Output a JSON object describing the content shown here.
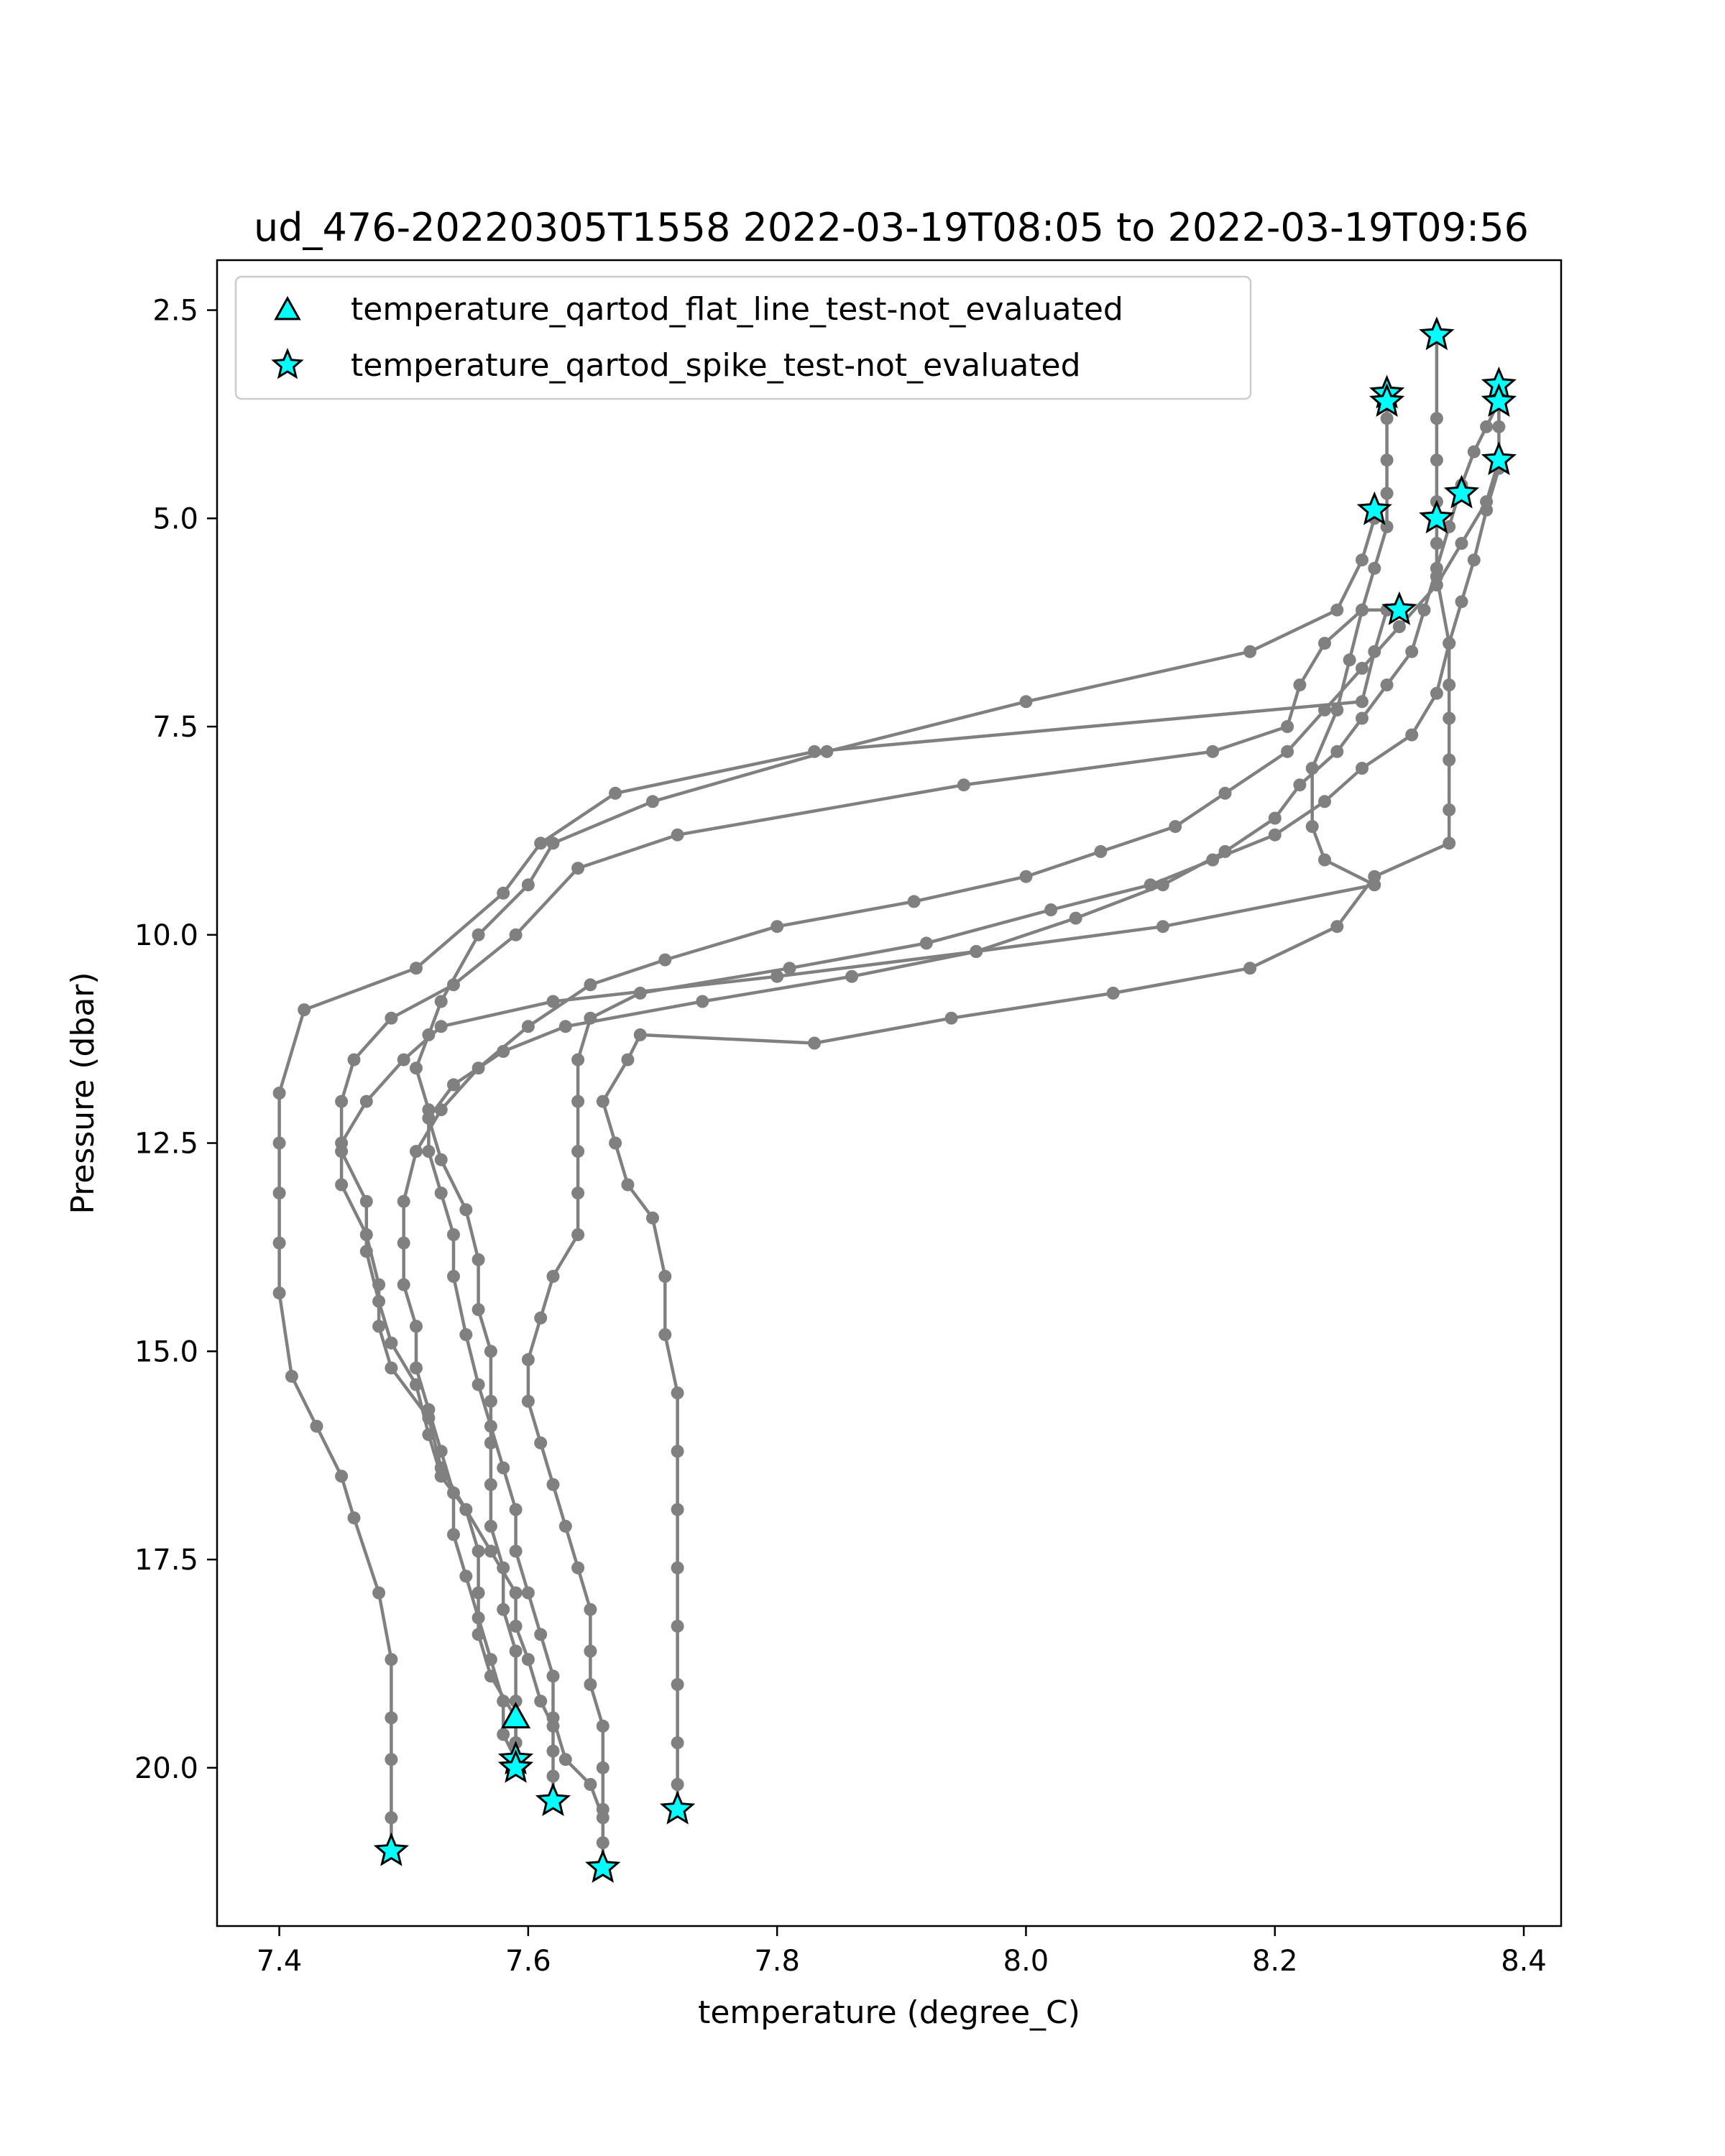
{
  "chart_data": {
    "type": "line",
    "title": "ud_476-20220305T1558 2022-03-19T08:05 to 2022-03-19T09:56",
    "xlabel": "temperature (degree_C)",
    "ylabel": "Pressure (dbar)",
    "xlim": [
      7.35,
      8.43
    ],
    "ylim": [
      21.9,
      1.9
    ],
    "y_inverted": true,
    "x_ticks": [
      7.4,
      7.6,
      7.8,
      8.0,
      8.2,
      8.4
    ],
    "x_tick_labels": [
      "7.4",
      "7.6",
      "7.8",
      "8.0",
      "8.2",
      "8.4"
    ],
    "y_ticks": [
      2.5,
      5.0,
      7.5,
      10.0,
      12.5,
      15.0,
      17.5,
      20.0
    ],
    "y_tick_labels": [
      "2.5",
      "5.0",
      "7.5",
      "10.0",
      "12.5",
      "15.0",
      "17.5",
      "20.0"
    ],
    "grid": false,
    "legend_position": "upper-left",
    "line_color": "#808080",
    "marker_color": "#00ffff",
    "series": [
      {
        "profile": 1,
        "direction": "down",
        "points": [
          [
            8.33,
            2.8
          ],
          [
            8.33,
            3.8
          ],
          [
            8.33,
            4.3
          ],
          [
            8.33,
            4.8
          ],
          [
            8.33,
            5.3
          ],
          [
            8.33,
            5.7
          ],
          [
            8.34,
            6.5
          ],
          [
            8.34,
            7.0
          ],
          [
            8.34,
            7.4
          ],
          [
            8.34,
            7.9
          ],
          [
            8.34,
            8.5
          ],
          [
            8.34,
            8.9
          ],
          [
            8.28,
            9.3
          ],
          [
            8.25,
            9.9
          ],
          [
            8.18,
            10.4
          ],
          [
            8.07,
            10.7
          ],
          [
            7.94,
            11.0
          ],
          [
            7.83,
            11.3
          ],
          [
            7.69,
            11.2
          ],
          [
            7.68,
            11.5
          ],
          [
            7.66,
            12.0
          ],
          [
            7.67,
            12.5
          ],
          [
            7.68,
            13.0
          ],
          [
            7.7,
            13.4
          ],
          [
            7.71,
            14.1
          ],
          [
            7.71,
            14.8
          ],
          [
            7.72,
            15.5
          ],
          [
            7.72,
            16.2
          ],
          [
            7.72,
            16.9
          ],
          [
            7.72,
            17.6
          ],
          [
            7.72,
            18.3
          ],
          [
            7.72,
            19.0
          ],
          [
            7.72,
            19.7
          ],
          [
            7.72,
            20.2
          ],
          [
            7.72,
            20.5
          ]
        ]
      },
      {
        "profile": 2,
        "direction": "up",
        "points": [
          [
            7.49,
            21.0
          ],
          [
            7.49,
            20.6
          ],
          [
            7.49,
            19.9
          ],
          [
            7.49,
            19.4
          ],
          [
            7.49,
            18.7
          ],
          [
            7.48,
            17.9
          ],
          [
            7.46,
            17.0
          ],
          [
            7.45,
            16.5
          ],
          [
            7.43,
            15.9
          ],
          [
            7.41,
            15.3
          ],
          [
            7.4,
            14.3
          ],
          [
            7.4,
            13.7
          ],
          [
            7.4,
            13.1
          ],
          [
            7.4,
            12.5
          ],
          [
            7.4,
            11.9
          ],
          [
            7.42,
            10.9
          ],
          [
            7.51,
            10.4
          ],
          [
            7.58,
            9.5
          ],
          [
            7.61,
            8.9
          ],
          [
            7.67,
            8.3
          ],
          [
            7.83,
            7.8
          ],
          [
            8.27,
            7.2
          ],
          [
            8.28,
            6.6
          ],
          [
            8.29,
            6.1
          ]
        ]
      },
      {
        "profile": 3,
        "direction": "down",
        "points": [
          [
            8.29,
            3.5
          ],
          [
            8.29,
            3.8
          ],
          [
            8.29,
            4.3
          ],
          [
            8.29,
            4.7
          ],
          [
            8.29,
            5.1
          ],
          [
            8.28,
            5.6
          ],
          [
            8.27,
            6.1
          ],
          [
            8.26,
            6.7
          ],
          [
            8.25,
            7.3
          ],
          [
            8.23,
            8.0
          ],
          [
            8.23,
            8.7
          ],
          [
            8.24,
            9.1
          ],
          [
            8.28,
            9.4
          ],
          [
            8.11,
            9.9
          ],
          [
            7.96,
            10.2
          ],
          [
            7.8,
            10.5
          ],
          [
            7.62,
            10.8
          ],
          [
            7.53,
            11.1
          ],
          [
            7.5,
            11.5
          ],
          [
            7.47,
            12.0
          ],
          [
            7.45,
            12.5
          ],
          [
            7.45,
            13.0
          ],
          [
            7.47,
            13.6
          ],
          [
            7.48,
            14.2
          ],
          [
            7.48,
            14.7
          ],
          [
            7.49,
            15.2
          ],
          [
            7.52,
            15.8
          ],
          [
            7.53,
            16.4
          ],
          [
            7.55,
            16.9
          ],
          [
            7.57,
            17.4
          ],
          [
            7.59,
            17.9
          ],
          [
            7.59,
            18.3
          ],
          [
            7.6,
            18.7
          ],
          [
            7.61,
            19.2
          ],
          [
            7.62,
            19.5
          ],
          [
            7.62,
            19.8
          ],
          [
            7.62,
            20.1
          ],
          [
            7.62,
            20.4
          ]
        ]
      },
      {
        "profile": 4,
        "direction": "up",
        "points": [
          [
            7.66,
            21.2
          ],
          [
            7.66,
            20.9
          ],
          [
            7.66,
            20.6
          ],
          [
            7.65,
            20.2
          ],
          [
            7.63,
            19.9
          ],
          [
            7.62,
            19.4
          ],
          [
            7.62,
            18.9
          ],
          [
            7.61,
            18.4
          ],
          [
            7.6,
            17.9
          ],
          [
            7.59,
            17.4
          ],
          [
            7.59,
            16.9
          ],
          [
            7.58,
            16.4
          ],
          [
            7.57,
            15.9
          ],
          [
            7.56,
            15.4
          ],
          [
            7.55,
            14.8
          ],
          [
            7.54,
            14.1
          ],
          [
            7.54,
            13.6
          ],
          [
            7.53,
            13.1
          ],
          [
            7.52,
            12.6
          ],
          [
            7.52,
            12.1
          ],
          [
            7.51,
            11.6
          ],
          [
            7.52,
            11.2
          ],
          [
            7.53,
            10.8
          ],
          [
            7.56,
            10.0
          ],
          [
            7.6,
            9.4
          ],
          [
            7.62,
            8.9
          ],
          [
            7.7,
            8.4
          ],
          [
            7.84,
            7.8
          ],
          [
            8.0,
            7.2
          ],
          [
            8.18,
            6.6
          ],
          [
            8.25,
            6.1
          ],
          [
            8.27,
            5.5
          ],
          [
            8.28,
            5.0
          ]
        ]
      },
      {
        "profile": 5,
        "direction": "down",
        "points": [
          [
            8.38,
            3.6
          ],
          [
            8.37,
            3.9
          ],
          [
            8.36,
            4.2
          ],
          [
            8.35,
            4.6
          ],
          [
            8.34,
            5.1
          ],
          [
            8.33,
            5.6
          ],
          [
            8.32,
            6.1
          ],
          [
            8.31,
            6.6
          ],
          [
            8.29,
            7.0
          ],
          [
            8.27,
            7.4
          ],
          [
            8.25,
            7.8
          ],
          [
            8.22,
            8.2
          ],
          [
            8.2,
            8.6
          ],
          [
            8.16,
            9.0
          ],
          [
            8.11,
            9.4
          ],
          [
            8.04,
            9.8
          ],
          [
            7.96,
            10.2
          ],
          [
            7.86,
            10.5
          ],
          [
            7.74,
            10.8
          ],
          [
            7.63,
            11.1
          ],
          [
            7.58,
            11.4
          ],
          [
            7.54,
            11.8
          ],
          [
            7.52,
            12.2
          ],
          [
            7.53,
            12.7
          ],
          [
            7.55,
            13.3
          ],
          [
            7.56,
            13.9
          ],
          [
            7.56,
            14.5
          ],
          [
            7.57,
            15.0
          ],
          [
            7.57,
            15.6
          ],
          [
            7.57,
            16.1
          ],
          [
            7.57,
            16.6
          ],
          [
            7.57,
            17.1
          ],
          [
            7.58,
            17.6
          ],
          [
            7.58,
            18.1
          ],
          [
            7.59,
            18.6
          ],
          [
            7.59,
            19.2
          ],
          [
            7.59,
            19.7
          ],
          [
            7.59,
            20.0
          ]
        ]
      },
      {
        "profile": 6,
        "direction": "up",
        "points": [
          [
            7.59,
            19.9
          ],
          [
            7.59,
            19.7
          ],
          [
            7.59,
            19.4
          ],
          [
            7.57,
            18.9
          ],
          [
            7.56,
            18.4
          ],
          [
            7.56,
            17.9
          ],
          [
            7.56,
            17.4
          ],
          [
            7.55,
            16.9
          ],
          [
            7.53,
            16.5
          ],
          [
            7.52,
            16.0
          ],
          [
            7.51,
            15.4
          ],
          [
            7.49,
            14.9
          ],
          [
            7.48,
            14.4
          ],
          [
            7.47,
            13.8
          ],
          [
            7.47,
            13.2
          ],
          [
            7.45,
            12.6
          ],
          [
            7.45,
            12.0
          ],
          [
            7.46,
            11.5
          ],
          [
            7.49,
            11.0
          ],
          [
            7.54,
            10.6
          ],
          [
            7.59,
            10.0
          ],
          [
            7.64,
            9.2
          ],
          [
            7.72,
            8.8
          ],
          [
            7.95,
            8.2
          ],
          [
            8.15,
            7.8
          ],
          [
            8.21,
            7.5
          ],
          [
            8.22,
            7.0
          ],
          [
            8.24,
            6.5
          ],
          [
            8.27,
            6.1
          ],
          [
            8.3,
            6.1
          ]
        ]
      },
      {
        "profile": 7,
        "direction": "down",
        "points": [
          [
            8.38,
            3.4
          ],
          [
            8.38,
            3.9
          ],
          [
            8.38,
            4.4
          ],
          [
            8.37,
            4.9
          ],
          [
            8.36,
            5.5
          ],
          [
            8.35,
            6.0
          ],
          [
            8.34,
            6.5
          ],
          [
            8.33,
            7.1
          ],
          [
            8.31,
            7.6
          ],
          [
            8.27,
            8.0
          ],
          [
            8.24,
            8.4
          ],
          [
            8.2,
            8.8
          ],
          [
            8.15,
            9.1
          ],
          [
            8.1,
            9.4
          ],
          [
            8.02,
            9.7
          ],
          [
            7.92,
            10.1
          ],
          [
            7.81,
            10.4
          ],
          [
            7.69,
            10.7
          ],
          [
            7.65,
            11.0
          ],
          [
            7.64,
            11.5
          ],
          [
            7.64,
            12.0
          ],
          [
            7.64,
            12.6
          ],
          [
            7.64,
            13.1
          ],
          [
            7.64,
            13.6
          ],
          [
            7.62,
            14.1
          ],
          [
            7.61,
            14.6
          ],
          [
            7.6,
            15.1
          ],
          [
            7.6,
            15.6
          ],
          [
            7.61,
            16.1
          ],
          [
            7.62,
            16.6
          ],
          [
            7.63,
            17.1
          ],
          [
            7.64,
            17.6
          ],
          [
            7.65,
            18.1
          ],
          [
            7.65,
            18.6
          ],
          [
            7.65,
            19.0
          ],
          [
            7.66,
            19.5
          ],
          [
            7.66,
            20.0
          ],
          [
            7.66,
            20.5
          ],
          [
            7.66,
            21.2
          ]
        ]
      },
      {
        "profile": 8,
        "direction": "up",
        "points": [
          [
            8.38,
            4.3
          ],
          [
            8.37,
            4.8
          ],
          [
            8.35,
            5.3
          ],
          [
            8.33,
            5.8
          ],
          [
            8.3,
            6.3
          ],
          [
            8.27,
            6.8
          ],
          [
            8.24,
            7.3
          ],
          [
            8.21,
            7.8
          ],
          [
            8.16,
            8.3
          ],
          [
            8.12,
            8.7
          ],
          [
            8.06,
            9.0
          ],
          [
            8.0,
            9.3
          ],
          [
            7.91,
            9.6
          ],
          [
            7.8,
            9.9
          ],
          [
            7.71,
            10.3
          ],
          [
            7.65,
            10.6
          ],
          [
            7.6,
            11.1
          ],
          [
            7.56,
            11.6
          ],
          [
            7.53,
            12.1
          ],
          [
            7.51,
            12.6
          ],
          [
            7.5,
            13.2
          ],
          [
            7.5,
            13.7
          ],
          [
            7.5,
            14.2
          ],
          [
            7.51,
            14.7
          ],
          [
            7.51,
            15.2
          ],
          [
            7.52,
            15.7
          ],
          [
            7.53,
            16.2
          ],
          [
            7.54,
            16.7
          ],
          [
            7.54,
            17.2
          ],
          [
            7.55,
            17.7
          ],
          [
            7.56,
            18.2
          ],
          [
            7.57,
            18.7
          ],
          [
            7.58,
            19.2
          ],
          [
            7.58,
            19.6
          ],
          [
            7.59,
            19.9
          ]
        ]
      }
    ],
    "marker_series": [
      {
        "name": "temperature_qartod_flat_line_test-not_evaluated",
        "marker": "triangle",
        "points": [
          [
            7.59,
            19.4
          ]
        ]
      },
      {
        "name": "temperature_qartod_spike_test-not_evaluated",
        "marker": "star",
        "points": [
          [
            8.33,
            2.8
          ],
          [
            8.29,
            3.5
          ],
          [
            8.29,
            3.6
          ],
          [
            8.38,
            3.4
          ],
          [
            8.38,
            3.6
          ],
          [
            8.38,
            4.3
          ],
          [
            8.35,
            4.7
          ],
          [
            8.28,
            4.9
          ],
          [
            8.33,
            5.0
          ],
          [
            8.3,
            6.1
          ],
          [
            7.59,
            19.9
          ],
          [
            7.59,
            20.0
          ],
          [
            7.62,
            20.4
          ],
          [
            7.72,
            20.5
          ],
          [
            7.49,
            21.0
          ],
          [
            7.66,
            21.2
          ]
        ]
      }
    ]
  }
}
